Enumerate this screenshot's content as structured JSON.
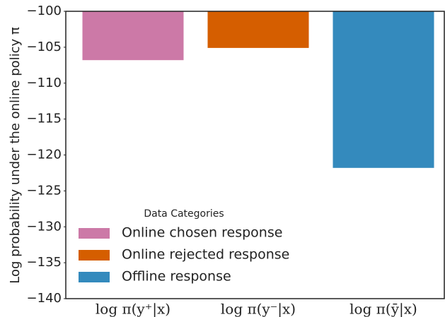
{
  "chart_data": {
    "type": "bar",
    "y_label": "Log probability under the online policy π",
    "categories": [
      "log π(y⁺|x)",
      "log π(y⁻|x)",
      "log π(ȳ|x)"
    ],
    "values": [
      -106.8,
      -105.1,
      -121.8
    ],
    "colors": [
      "#cc79a7",
      "#d55e00",
      "#348abd"
    ],
    "legend": {
      "title": "Data Categories",
      "labels": [
        "Online chosen response",
        "Online rejected response",
        "Offline response"
      ],
      "position": "lower left"
    },
    "ylim": [
      -140,
      -100
    ],
    "yticks": [
      {
        "value": -140,
        "label": "−140"
      },
      {
        "value": -135,
        "label": "−135"
      },
      {
        "value": -130,
        "label": "−130"
      },
      {
        "value": -125,
        "label": "−125"
      },
      {
        "value": -120,
        "label": "−120"
      },
      {
        "value": -115,
        "label": "−115"
      },
      {
        "value": -110,
        "label": "−110"
      },
      {
        "value": -105,
        "label": "−105"
      },
      {
        "value": -100,
        "label": "−100"
      }
    ],
    "grid": false
  }
}
